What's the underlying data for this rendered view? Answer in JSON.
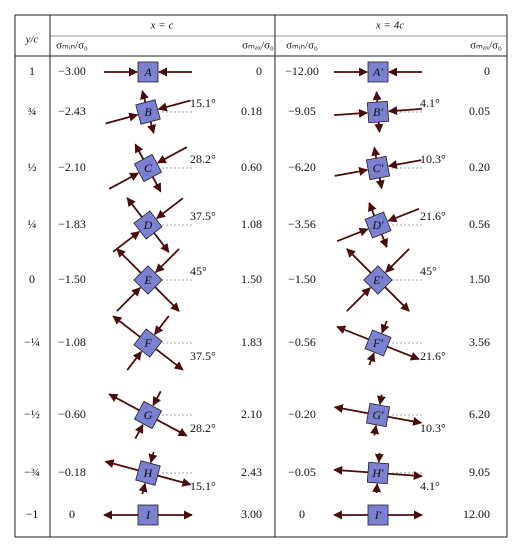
{
  "header": {
    "row_label": "y/c",
    "groups": [
      {
        "title": "x =  c",
        "min_label": "σₘᵢₙ/σ₀",
        "max_label": "σₘₐₓ/σ₀"
      },
      {
        "title": "x = 4c",
        "min_label": "σₘᵢₙ/σ₀",
        "max_label": "σₘₐₓ/σ₀"
      }
    ]
  },
  "rows": [
    {
      "y": "1",
      "cells": [
        {
          "min": "−3.00",
          "element": "A",
          "max": "0"
        },
        {
          "min": "−12.00",
          "element": "A′",
          "max": "0"
        }
      ]
    },
    {
      "y": "¾",
      "cells": [
        {
          "min": "−2.43",
          "element": "B",
          "angle": "15.1°",
          "max": "0.18"
        },
        {
          "min": "−9.05",
          "element": "B′",
          "angle": "4.1°",
          "max": "0.05"
        }
      ]
    },
    {
      "y": "½",
      "cells": [
        {
          "min": "−2.10",
          "element": "C",
          "angle": "28.2°",
          "max": "0.60"
        },
        {
          "min": "−6.20",
          "element": "C′",
          "angle": "10.3°",
          "max": "0.20"
        }
      ]
    },
    {
      "y": "¼",
      "cells": [
        {
          "min": "−1.83",
          "element": "D",
          "angle": "37.5°",
          "max": "1.08"
        },
        {
          "min": "−3.56",
          "element": "D′",
          "angle": "21.6°",
          "max": "0.56"
        }
      ]
    },
    {
      "y": "0",
      "cells": [
        {
          "min": "−1.50",
          "element": "E",
          "angle": "45°",
          "max": "1.50"
        },
        {
          "min": "−1.50",
          "element": "E′",
          "angle": "45°",
          "max": "1.50"
        }
      ]
    },
    {
      "y": "−¼",
      "cells": [
        {
          "min": "−1.08",
          "element": "F",
          "angle": "37.5°",
          "max": "1.83"
        },
        {
          "min": "−0.56",
          "element": "F′",
          "angle": "21.6°",
          "max": "3.56"
        }
      ]
    },
    {
      "y": "−½",
      "cells": [
        {
          "min": "−0.60",
          "element": "G",
          "angle": "28.2°",
          "max": "2.10"
        },
        {
          "min": "−0.20",
          "element": "G′",
          "angle": "10.3°",
          "max": "6.20"
        }
      ]
    },
    {
      "y": "−¾",
      "cells": [
        {
          "min": "−0.18",
          "element": "H",
          "angle": "15.1°",
          "max": "2.43"
        },
        {
          "min": "−0.05",
          "element": "H′",
          "angle": "4.1°",
          "max": "9.05"
        }
      ]
    },
    {
      "y": "−1",
      "cells": [
        {
          "min": "0",
          "element": "I",
          "max": "3.00"
        },
        {
          "min": "0",
          "element": "I′",
          "max": "12.00"
        }
      ]
    }
  ]
}
